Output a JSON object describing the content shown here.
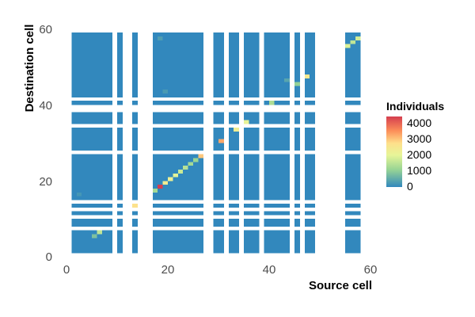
{
  "chart_data": {
    "type": "heatmap",
    "title": "",
    "xlabel": "Source cell",
    "ylabel": "Destination cell",
    "xlim": [
      0,
      60
    ],
    "ylim": [
      0,
      60
    ],
    "x_ticks": [
      "0",
      "20",
      "40",
      "60"
    ],
    "y_ticks": [
      "0",
      "20",
      "40",
      "60"
    ],
    "grid": false,
    "colorscale": [
      "#3288bd",
      "#99d594",
      "#e6f598",
      "#fee08b",
      "#fc8d59",
      "#d53e4f"
    ],
    "background_value": 0,
    "legend": {
      "title": "Individuals",
      "position": "right",
      "labels": [
        "4000",
        "3000",
        "2000",
        "1000",
        "0"
      ],
      "min": 0,
      "max": 4300
    },
    "active_columns": [
      1,
      2,
      3,
      4,
      5,
      6,
      7,
      8,
      10,
      13,
      17,
      18,
      19,
      20,
      21,
      22,
      23,
      24,
      25,
      26,
      29,
      30,
      32,
      33,
      35,
      36,
      37,
      39,
      40,
      41,
      42,
      43,
      45,
      47,
      48,
      55,
      56,
      57
    ],
    "active_rows": [
      1,
      2,
      3,
      4,
      5,
      6,
      8,
      9,
      11,
      13,
      15,
      16,
      17,
      18,
      19,
      20,
      21,
      22,
      23,
      24,
      25,
      26,
      28,
      29,
      30,
      31,
      32,
      33,
      35,
      36,
      37,
      40,
      42,
      43,
      44,
      45,
      46,
      47,
      48,
      49,
      50,
      51,
      52,
      53,
      54,
      55,
      56,
      57,
      58
    ],
    "cells": [
      [
        5,
        5,
        800
      ],
      [
        6,
        6,
        1500
      ],
      [
        10,
        10,
        2200
      ],
      [
        13,
        13,
        2600
      ],
      [
        17,
        17,
        1200
      ],
      [
        18,
        18,
        4300
      ],
      [
        19,
        19,
        2300
      ],
      [
        20,
        20,
        2100
      ],
      [
        21,
        21,
        1900
      ],
      [
        22,
        22,
        1600
      ],
      [
        23,
        23,
        1400
      ],
      [
        24,
        24,
        1200
      ],
      [
        25,
        25,
        1100
      ],
      [
        26,
        26,
        2900
      ],
      [
        30,
        30,
        3200
      ],
      [
        33,
        33,
        2200
      ],
      [
        35,
        35,
        2000
      ],
      [
        40,
        40,
        1300
      ],
      [
        45,
        45,
        1000
      ],
      [
        46,
        46,
        3500
      ],
      [
        47,
        47,
        2400
      ],
      [
        55,
        55,
        1800
      ],
      [
        56,
        56,
        1500
      ],
      [
        57,
        57,
        1700
      ],
      [
        18,
        57,
        300
      ],
      [
        19,
        43,
        250
      ],
      [
        43,
        46,
        400
      ],
      [
        44,
        46,
        350
      ],
      [
        2,
        16,
        200
      ]
    ]
  }
}
